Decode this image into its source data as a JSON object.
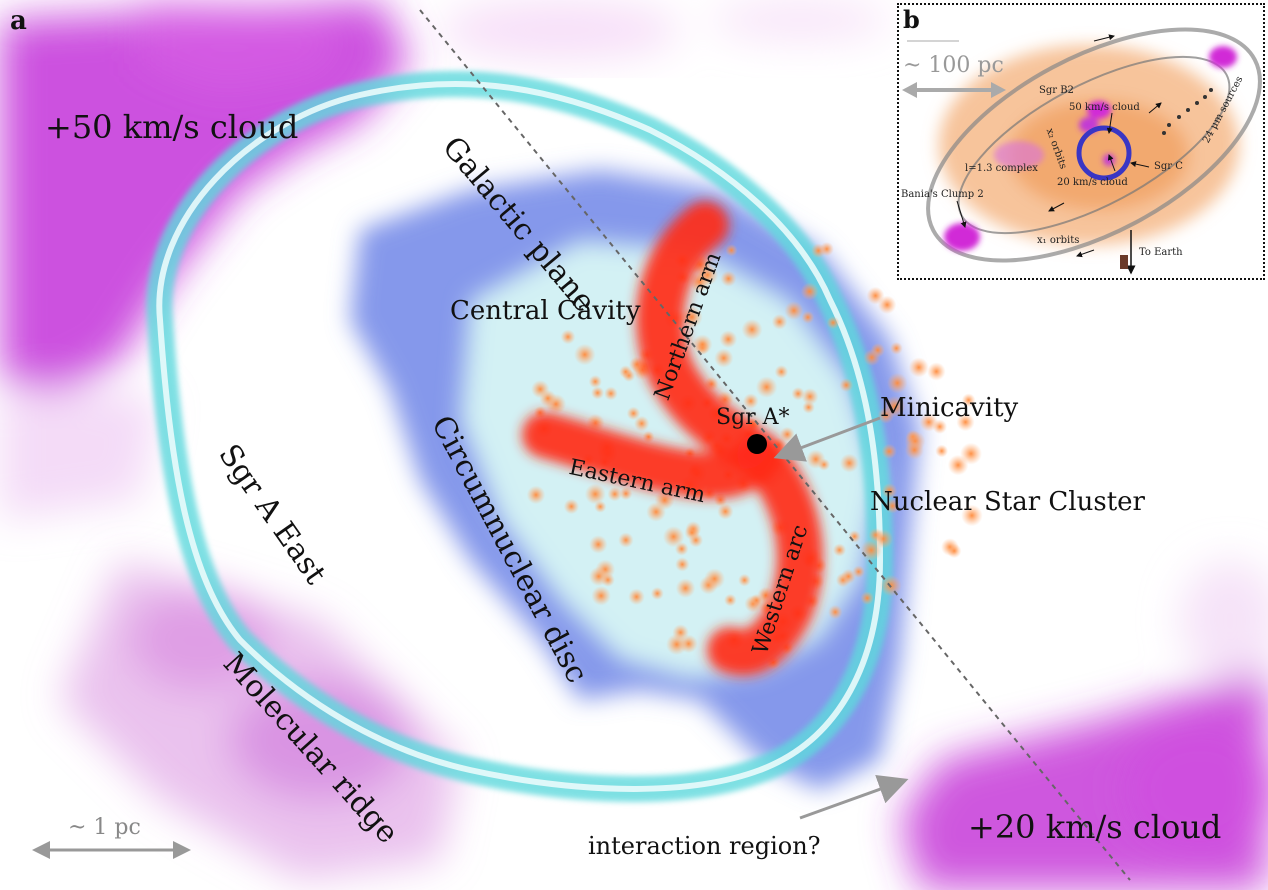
{
  "panel_a": {
    "letter": "a",
    "labels": {
      "cloud_50": "+50 km/s cloud",
      "cloud_20": "+20 km/s cloud",
      "galactic_plane": "Galactic plane",
      "central_cavity": "Central Cavity",
      "northern_arm": "Northern arm",
      "eastern_arm": "Eastern arm",
      "western_arc": "Western arc",
      "sgr_a_star": "Sgr A*",
      "minicavity": "Minicavity",
      "nuclear_star_cluster": "Nuclear Star Cluster",
      "circumnuclear_disc": "Circumnuclear disc",
      "sgr_a_east": "Sgr A East",
      "molecular_ridge": "Molecular ridge",
      "interaction_region": "interaction region?",
      "scale": "~ 1 pc"
    }
  },
  "panel_b": {
    "letter": "b",
    "labels": {
      "scale": "~ 100 pc",
      "sgr_b2": "Sgr B2",
      "cloud_50": "50 km/s cloud",
      "cloud_20": "20 km/s cloud",
      "sgr_c": "Sgr C",
      "l13_complex": "l=1.3 complex",
      "banias_clump": "Bania's Clump 2",
      "x1_orbits": "x₁ orbits",
      "x2_orbits": "x₂ orbits",
      "to_earth": "To Earth",
      "sources_24um": "24 μm sources"
    }
  },
  "colors": {
    "cloud_magenta": "#c936d8",
    "ring_cyan": "#5fd9dd",
    "disc_blue": "#6f86e6",
    "arm_red": "#ff2a1a",
    "star_orange": "#ff9a55",
    "cavity_cyan": "#dff7f7",
    "arrow_gray": "#999999"
  }
}
